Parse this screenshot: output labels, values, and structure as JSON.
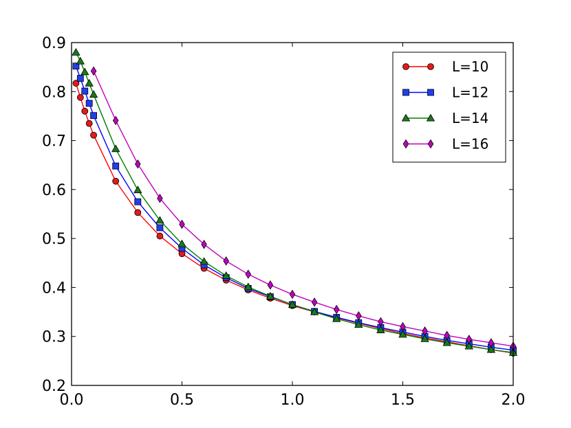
{
  "chart_data": {
    "type": "line",
    "title": "",
    "xlabel": "",
    "ylabel": "",
    "xlim": [
      0.0,
      2.0
    ],
    "ylim": [
      0.2,
      0.9
    ],
    "x_ticks": [
      "0.0",
      "0.5",
      "1.0",
      "1.5",
      "2.0"
    ],
    "y_ticks": [
      "0.2",
      "0.3",
      "0.4",
      "0.5",
      "0.6",
      "0.7",
      "0.8",
      "0.9"
    ],
    "grid": false,
    "legend_position": "top-right",
    "series": [
      {
        "name": "L=10",
        "color": "#e31a1c",
        "line_color": "#ff0000",
        "marker": "circle",
        "x": [
          0.02,
          0.04,
          0.06,
          0.08,
          0.1,
          0.2,
          0.3,
          0.4,
          0.5,
          0.6,
          0.7,
          0.8,
          0.9,
          1.0,
          1.1,
          1.2,
          1.3,
          1.4,
          1.5,
          1.6,
          1.7,
          1.8,
          1.9,
          2.0
        ],
        "y": [
          0.817,
          0.788,
          0.76,
          0.735,
          0.711,
          0.617,
          0.553,
          0.505,
          0.469,
          0.439,
          0.415,
          0.395,
          0.378,
          0.363,
          0.35,
          0.338,
          0.327,
          0.316,
          0.306,
          0.297,
          0.289,
          0.281,
          0.273,
          0.266
        ]
      },
      {
        "name": "L=12",
        "color": "#1f3ff0",
        "line_color": "#0000ff",
        "marker": "square",
        "x": [
          0.02,
          0.04,
          0.06,
          0.08,
          0.1,
          0.2,
          0.3,
          0.4,
          0.5,
          0.6,
          0.7,
          0.8,
          0.9,
          1.0,
          1.1,
          1.2,
          1.3,
          1.4,
          1.5,
          1.6,
          1.7,
          1.8,
          1.9,
          2.0
        ],
        "y": [
          0.852,
          0.827,
          0.801,
          0.776,
          0.751,
          0.648,
          0.575,
          0.522,
          0.48,
          0.446,
          0.42,
          0.398,
          0.381,
          0.365,
          0.351,
          0.339,
          0.328,
          0.318,
          0.309,
          0.3,
          0.292,
          0.285,
          0.278,
          0.272
        ]
      },
      {
        "name": "L=14",
        "color": "#1a7a1a",
        "line_color": "#007f00",
        "marker": "triangle",
        "x": [
          0.02,
          0.04,
          0.06,
          0.08,
          0.1,
          0.2,
          0.3,
          0.4,
          0.5,
          0.6,
          0.7,
          0.8,
          0.9,
          1.0,
          1.1,
          1.2,
          1.3,
          1.4,
          1.5,
          1.6,
          1.7,
          1.8,
          1.9,
          2.0
        ],
        "y": [
          0.88,
          0.862,
          0.84,
          0.817,
          0.794,
          0.683,
          0.599,
          0.537,
          0.489,
          0.453,
          0.424,
          0.401,
          0.382,
          0.365,
          0.35,
          0.336,
          0.324,
          0.313,
          0.304,
          0.295,
          0.287,
          0.28,
          0.273,
          0.267
        ]
      },
      {
        "name": "L=16",
        "color": "#bf00bf",
        "line_color": "#bf00bf",
        "marker": "diamond",
        "x": [
          0.1,
          0.2,
          0.3,
          0.4,
          0.5,
          0.6,
          0.7,
          0.8,
          0.9,
          1.0,
          1.1,
          1.2,
          1.3,
          1.4,
          1.5,
          1.6,
          1.7,
          1.8,
          1.9,
          2.0
        ],
        "y": [
          0.842,
          0.741,
          0.652,
          0.582,
          0.529,
          0.488,
          0.454,
          0.427,
          0.405,
          0.386,
          0.37,
          0.355,
          0.342,
          0.33,
          0.32,
          0.311,
          0.302,
          0.294,
          0.287,
          0.28
        ]
      }
    ]
  }
}
